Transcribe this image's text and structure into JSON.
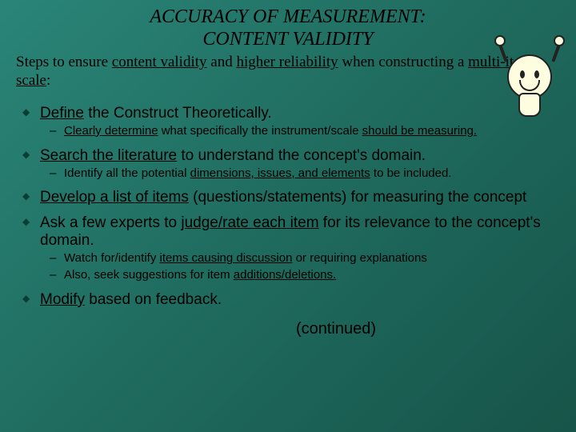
{
  "title_line1": "ACCURACY OF MEASUREMENT:",
  "title_line2": "CONTENT VALIDITY",
  "intro_pre": "Steps to ensure ",
  "intro_u1": "content validity",
  "intro_mid1": " and ",
  "intro_u2": "higher reliability",
  "intro_mid2": " when constructing a ",
  "intro_u3": "multi-item scale",
  "intro_post": ":",
  "b1_u": "Define",
  "b1_rest": " the Construct Theoretically.",
  "b1s_u1": "Clearly determine",
  "b1s_mid": " what specifically the instrument/scale ",
  "b1s_u2": "should be measuring.",
  "b2_u": "Search the literature",
  "b2_rest": " to understand the concept's domain.",
  "b2s_pre": "Identify all the potential ",
  "b2s_u": "dimensions, issues, and elements",
  "b2s_post": " to be included.",
  "b3_u": "Develop a list of items",
  "b3_rest": " (questions/statements) for measuring the concept",
  "b4_pre": "Ask a few experts to ",
  "b4_u": "judge/rate each item",
  "b4_post": " for its relevance to the concept's domain.",
  "b4s1_pre": "Watch for/identify ",
  "b4s1_u": "items causing discussion",
  "b4s1_post": " or requiring explanations",
  "b4s2_pre": "Also, seek suggestions for item ",
  "b4s2_u": "additions/deletions.",
  "b5_u": "Modify",
  "b5_rest": " based on feedback.",
  "continued": "(continued)"
}
